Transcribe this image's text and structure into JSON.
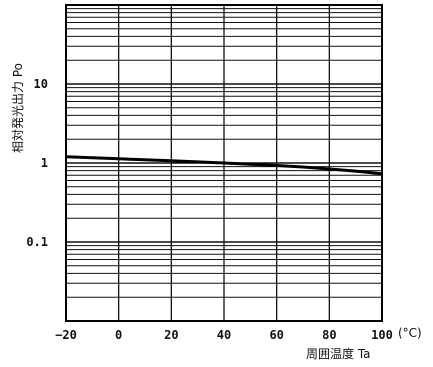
{
  "chart_data": {
    "type": "line",
    "title": "",
    "xlabel": "周囲温度  Ta",
    "ylabel": "相対発光出力  Po",
    "x_unit": "(°C)",
    "xlim": [
      -20,
      100
    ],
    "ylim": [
      0.01,
      100
    ],
    "yscale": "log",
    "grid": true,
    "x_ticks": [
      -20,
      0,
      20,
      40,
      60,
      80,
      100
    ],
    "x_tick_labels": [
      "−20",
      "0",
      "20",
      "40",
      "60",
      "80",
      "100"
    ],
    "y_ticks": [
      0.1,
      1,
      10
    ],
    "y_tick_labels": [
      "0.1",
      "1",
      "10"
    ],
    "series": [
      {
        "x": [
          -20,
          0,
          20,
          40,
          60,
          70,
          80,
          90,
          100
        ],
        "y": [
          1.2,
          1.13,
          1.07,
          1.0,
          0.93,
          0.89,
          0.84,
          0.79,
          0.73
        ]
      }
    ],
    "colors": {
      "line": "#000000",
      "grid": "#111111",
      "frame": "#000000"
    }
  }
}
